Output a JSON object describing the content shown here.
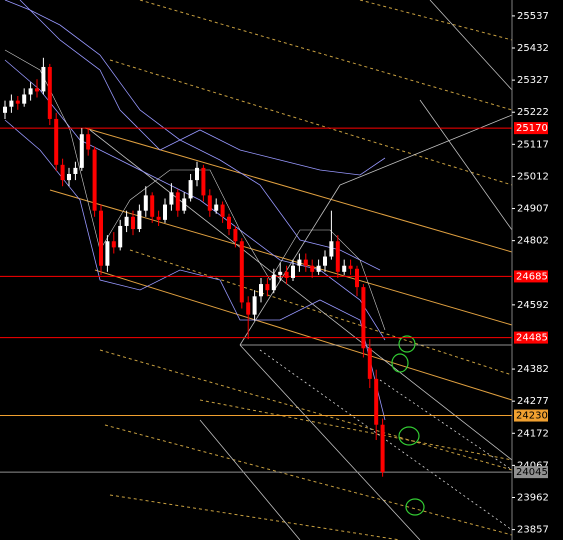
{
  "chart_data": {
    "type": "candlestick",
    "ylim": [
      23823,
      25589
    ],
    "yticks": [
      25537,
      25432,
      25327,
      25222,
      25117,
      25012,
      24907,
      24802,
      24592,
      24382,
      24277,
      24172,
      24067,
      23962,
      23857
    ],
    "up_color": "#ffffff",
    "down_color": "#ff0000",
    "candles": [
      [
        25220,
        25260,
        25200,
        25240
      ],
      [
        25240,
        25280,
        25220,
        25260
      ],
      [
        25260,
        25275,
        25230,
        25250
      ],
      [
        25250,
        25300,
        25240,
        25280
      ],
      [
        25280,
        25320,
        25260,
        25300
      ],
      [
        25300,
        25330,
        25270,
        25290
      ],
      [
        25290,
        25400,
        25280,
        25370
      ],
      [
        25370,
        25380,
        25180,
        25200
      ],
      [
        25200,
        25220,
        25030,
        25050
      ],
      [
        25050,
        25070,
        24980,
        25000
      ],
      [
        25000,
        25040,
        24980,
        25020
      ],
      [
        25020,
        25060,
        25000,
        25040
      ],
      [
        25040,
        25170,
        25030,
        25150
      ],
      [
        25150,
        25170,
        25080,
        25100
      ],
      [
        25100,
        25110,
        24880,
        24900
      ],
      [
        24900,
        24920,
        24690,
        24720
      ],
      [
        24720,
        24820,
        24700,
        24800
      ],
      [
        24800,
        24830,
        24760,
        24780
      ],
      [
        24780,
        24870,
        24770,
        24850
      ],
      [
        24850,
        24900,
        24830,
        24880
      ],
      [
        24880,
        24900,
        24820,
        24840
      ],
      [
        24840,
        24920,
        24830,
        24900
      ],
      [
        24900,
        24980,
        24880,
        24950
      ],
      [
        24950,
        24960,
        24860,
        24880
      ],
      [
        24880,
        24900,
        24850,
        24870
      ],
      [
        24870,
        24940,
        24860,
        24920
      ],
      [
        24920,
        24990,
        24900,
        24960
      ],
      [
        24960,
        24970,
        24880,
        24900
      ],
      [
        24900,
        24960,
        24890,
        24940
      ],
      [
        24940,
        25020,
        24930,
        25000
      ],
      [
        25000,
        25060,
        24980,
        25040
      ],
      [
        25040,
        25050,
        24930,
        24950
      ],
      [
        24950,
        24970,
        24880,
        24900
      ],
      [
        24900,
        24940,
        24890,
        24920
      ],
      [
        24920,
        24930,
        24860,
        24880
      ],
      [
        24880,
        24890,
        24820,
        24840
      ],
      [
        24840,
        24850,
        24780,
        24800
      ],
      [
        24800,
        24810,
        24580,
        24600
      ],
      [
        24600,
        24620,
        24480,
        24560
      ],
      [
        24560,
        24640,
        24540,
        24620
      ],
      [
        24620,
        24680,
        24600,
        24660
      ],
      [
        24660,
        24680,
        24620,
        24640
      ],
      [
        24640,
        24710,
        24630,
        24690
      ],
      [
        24690,
        24730,
        24670,
        24700
      ],
      [
        24700,
        24720,
        24660,
        24680
      ],
      [
        24680,
        24740,
        24670,
        24720
      ],
      [
        24720,
        24760,
        24700,
        24740
      ],
      [
        24740,
        24760,
        24700,
        24720
      ],
      [
        24720,
        24740,
        24680,
        24700
      ],
      [
        24700,
        24740,
        24690,
        24720
      ],
      [
        24720,
        24770,
        24700,
        24750
      ],
      [
        24750,
        24900,
        24740,
        24800
      ],
      [
        24800,
        24820,
        24680,
        24700
      ],
      [
        24700,
        24740,
        24690,
        24720
      ],
      [
        24720,
        24740,
        24690,
        24710
      ],
      [
        24710,
        24720,
        24620,
        24650
      ],
      [
        24650,
        24660,
        24420,
        24450
      ],
      [
        24450,
        24480,
        24320,
        24350
      ],
      [
        24350,
        24380,
        24150,
        24200
      ],
      [
        24200,
        24220,
        24030,
        24045
      ]
    ],
    "levels": [
      {
        "value": 25170,
        "color": "#ff0000",
        "label_color": "#ffffff"
      },
      {
        "value": 24685,
        "color": "#ff0000",
        "label_color": "#ffffff"
      },
      {
        "value": 24485,
        "color": "#ff0000",
        "label_color": "#ffffff"
      },
      {
        "value": 24230,
        "color": "#f0a030",
        "label_color": "#000000"
      },
      {
        "value": 24045,
        "color": "#909090",
        "label_color": "#000000"
      }
    ]
  }
}
